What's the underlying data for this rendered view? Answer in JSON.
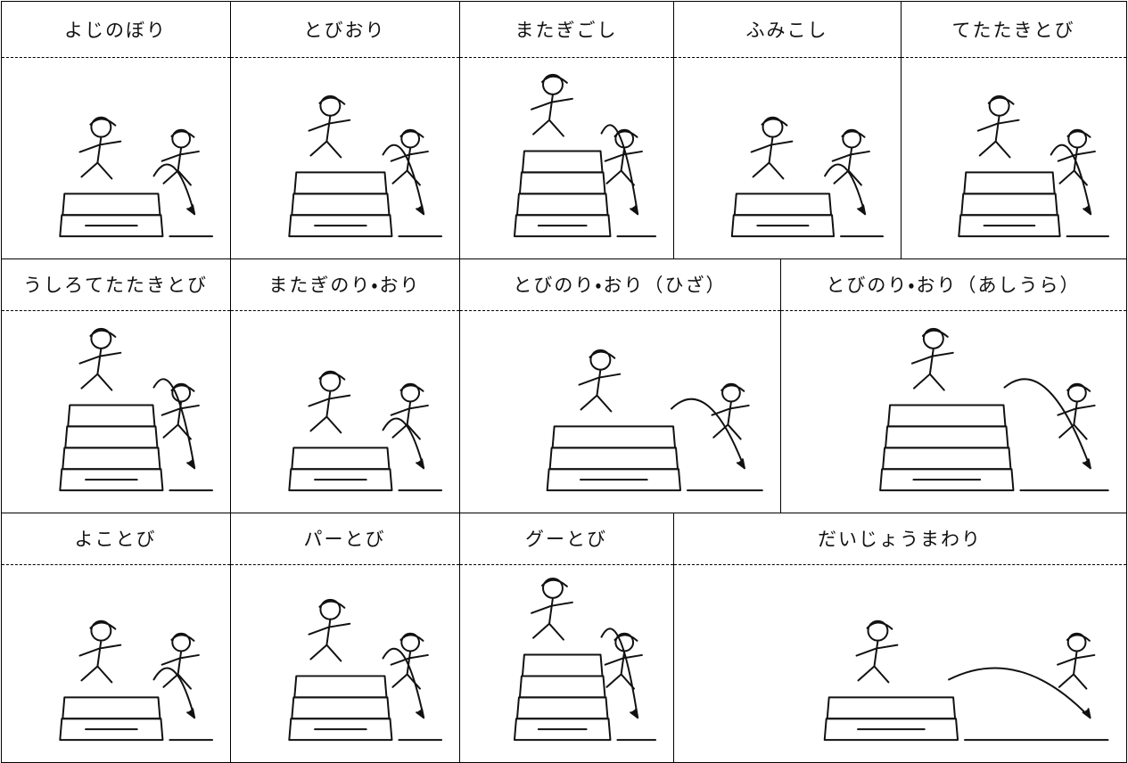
{
  "rows": [
    {
      "cells": [
        {
          "label": "よじのぼり"
        },
        {
          "label": "とびおり"
        },
        {
          "label": "またぎごし"
        },
        {
          "label": "ふみこし"
        },
        {
          "label": "てたたきとび"
        }
      ]
    },
    {
      "cells": [
        {
          "label": "うしろてたたきとび"
        },
        {
          "label": "またぎのり・おり"
        },
        {
          "label": "とびのり・おり（ひざ）"
        },
        {
          "label": "とびのり・おり（あしうら）"
        }
      ]
    },
    {
      "cells": [
        {
          "label": "よことび"
        },
        {
          "label": "パーとび"
        },
        {
          "label": "グーとび"
        },
        {
          "label": "だいじょうまわり"
        }
      ]
    }
  ]
}
